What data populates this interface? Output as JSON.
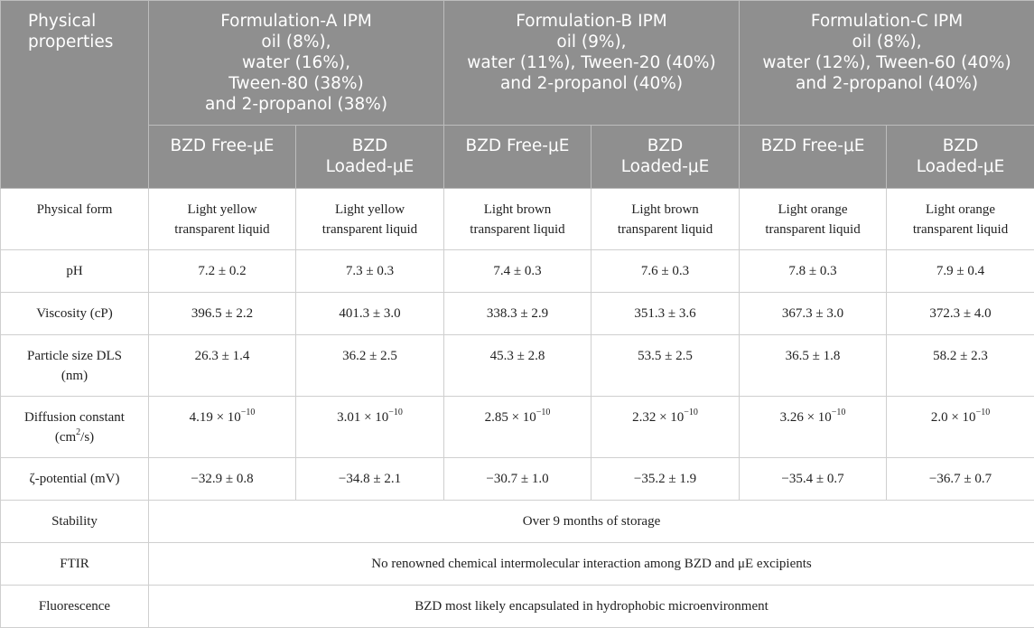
{
  "header": {
    "corner": [
      "Physical",
      "properties"
    ],
    "groups": [
      {
        "lines": [
          "Formulation-A IPM",
          "oil (8%),",
          "water (16%),",
          "Tween-80 (38%)",
          "and 2-propanol (38%)"
        ]
      },
      {
        "lines": [
          "Formulation-B IPM",
          "oil (9%),",
          "water (11%), Tween-20 (40%)",
          "and 2-propanol (40%)"
        ]
      },
      {
        "lines": [
          "Formulation-C IPM",
          "oil (8%),",
          "water (12%), Tween-60 (40%)",
          "and 2-propanol (40%)"
        ]
      }
    ],
    "sub": [
      [
        "BZD Free-μE"
      ],
      [
        "BZD",
        "Loaded-μE"
      ],
      [
        "BZD Free-μE"
      ],
      [
        "BZD",
        "Loaded-μE"
      ],
      [
        "BZD Free-μE"
      ],
      [
        "BZD",
        "Loaded-μE"
      ]
    ]
  },
  "rows": {
    "physical_form": {
      "label": [
        "Physical form"
      ],
      "cells": [
        [
          "Light yellow",
          "transparent liquid"
        ],
        [
          "Light yellow",
          "transparent liquid"
        ],
        [
          "Light brown",
          "transparent liquid"
        ],
        [
          "Light brown",
          "transparent liquid"
        ],
        [
          "Light orange",
          "transparent liquid"
        ],
        [
          "Light orange",
          "transparent liquid"
        ]
      ]
    },
    "ph": {
      "label": "pH",
      "cells": [
        "7.2 ± 0.2",
        "7.3 ± 0.3",
        "7.4 ± 0.3",
        "7.6 ± 0.3",
        "7.8 ± 0.3",
        "7.9 ± 0.4"
      ]
    },
    "viscosity": {
      "label": "Viscosity (cP)",
      "cells": [
        "396.5 ± 2.2",
        "401.3 ± 3.0",
        "338.3 ± 2.9",
        "351.3 ± 3.6",
        "367.3 ± 3.0",
        "372.3 ± 4.0"
      ]
    },
    "particle_size": {
      "label": [
        "Particle size DLS",
        "(nm)"
      ],
      "cells": [
        "26.3 ± 1.4",
        "36.2 ± 2.5",
        "45.3 ± 2.8",
        "53.5 ± 2.5",
        "36.5 ± 1.8",
        "58.2 ± 2.3"
      ]
    },
    "diffusion": {
      "label_main": "Diffusion constant",
      "label_unit_pre": "(cm",
      "label_unit_sup": "2",
      "label_unit_post": "/s)",
      "exp": "−10",
      "bases": [
        "4.19 × 10",
        "3.01 × 10",
        "2.85 × 10",
        "2.32 × 10",
        "3.26 × 10",
        "2.0 × 10"
      ]
    },
    "zeta": {
      "label": "ζ-potential (mV)",
      "cells": [
        "−32.9 ± 0.8",
        "−34.8 ± 2.1",
        "−30.7 ± 1.0",
        "−35.2 ± 1.9",
        "−35.4 ± 0.7",
        "−36.7 ± 0.7"
      ]
    },
    "stability": {
      "label": "Stability",
      "value": "Over 9 months of storage"
    },
    "ftir": {
      "label": "FTIR",
      "value": "No renowned chemical intermolecular interaction among BZD and μE excipients"
    },
    "fluorescence": {
      "label": "Fluorescence",
      "value": "BZD most likely encapsulated in hydrophobic microenvironment"
    }
  }
}
